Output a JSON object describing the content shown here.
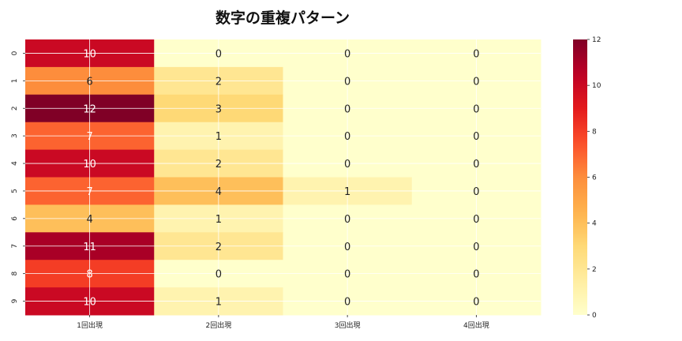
{
  "chart_data": {
    "type": "heatmap",
    "title": "数字の重複パターン",
    "xlabel": "",
    "ylabel": "",
    "x_categories": [
      "1回出現",
      "2回出現",
      "3回出現",
      "4回出現"
    ],
    "y_categories": [
      "0",
      "1",
      "2",
      "3",
      "4",
      "5",
      "6",
      "7",
      "8",
      "9"
    ],
    "values": [
      [
        10,
        0,
        0,
        0
      ],
      [
        6,
        2,
        0,
        0
      ],
      [
        12,
        3,
        0,
        0
      ],
      [
        7,
        1,
        0,
        0
      ],
      [
        10,
        2,
        0,
        0
      ],
      [
        7,
        4,
        1,
        0
      ],
      [
        4,
        1,
        0,
        0
      ],
      [
        11,
        2,
        0,
        0
      ],
      [
        8,
        0,
        0,
        0
      ],
      [
        10,
        1,
        0,
        0
      ]
    ],
    "colormap": "YlOrRd",
    "vmin": 0,
    "vmax": 12,
    "colorbar_ticks": [
      "0",
      "2",
      "4",
      "6",
      "8",
      "10",
      "12"
    ],
    "annotated": true,
    "grid": true
  }
}
